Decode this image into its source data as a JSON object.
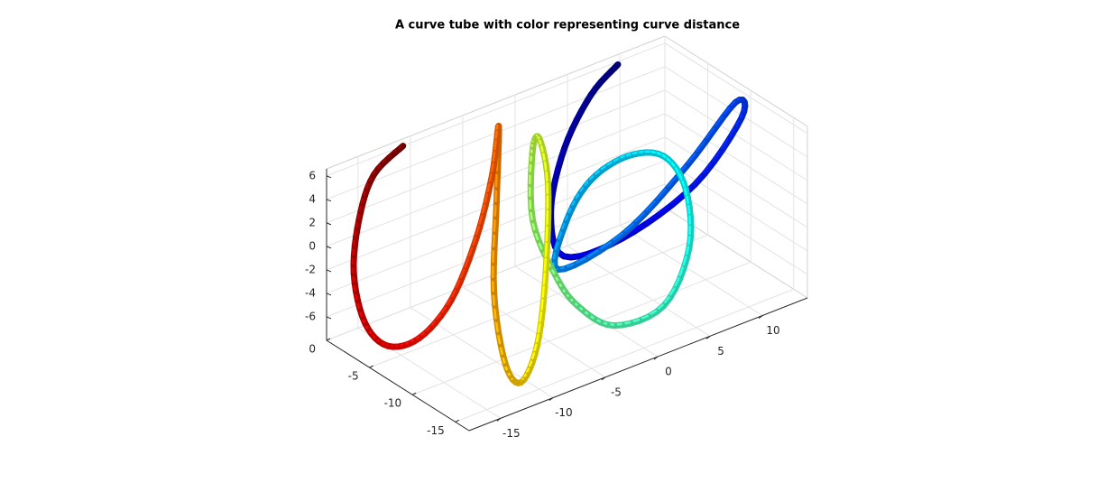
{
  "chart_data": {
    "type": "tube3d",
    "title": "A curve tube with color representing curve distance",
    "colormap": "jet",
    "grid": true,
    "x": [
      9,
      5.1,
      1.3,
      -1.5,
      -2.2,
      2.4,
      7.8,
      13.5,
      13.5,
      7.9,
      1.7,
      -3.8,
      -0.9,
      1.6,
      3.8,
      5.9,
      6.3,
      4.9,
      1.8,
      -1.85,
      -3.8,
      -4.4,
      -3.4,
      -1.55,
      -1.4,
      -3,
      -6.6,
      -8.8,
      -11,
      -10.7,
      -8,
      -5.5,
      -3.2,
      -4.9,
      -7.3,
      -10.2,
      -13.4,
      -16,
      -16.3,
      -15.4,
      -14.9,
      -13.5,
      -10.7
    ],
    "y": [
      -1,
      -2.6,
      -4.15,
      -6,
      -8.35,
      -9.6,
      -11.4,
      -9.9,
      -9.2,
      -10.3,
      -10.5,
      -9.6,
      -7.1,
      -6.9,
      -8.5,
      -10.1,
      -12.2,
      -14.3,
      -15.1,
      -13.8,
      -11.9,
      -10,
      -6.2,
      -3.9,
      -4.5,
      -7.5,
      -11.6,
      -13.3,
      -14.1,
      -11.9,
      -7.3,
      -4.55,
      -2,
      -3.3,
      -4.4,
      -5,
      -5.2,
      -4.7,
      -2.4,
      0,
      0,
      0,
      0
    ],
    "z": [
      6.5,
      6,
      3.5,
      0,
      -2.5,
      -2,
      1.5,
      4.5,
      5.5,
      2.5,
      -1,
      -2.5,
      -0.5,
      2,
      4,
      4,
      2,
      -1.5,
      -5,
      -6,
      -4.5,
      -2.5,
      0,
      4,
      5.5,
      3.5,
      -1,
      -5.5,
      -7.5,
      -7,
      -4,
      1.5,
      6,
      3,
      -1,
      -5,
      -7,
      -7,
      -6,
      -3.2,
      1.2,
      4.5,
      6
    ],
    "xlim": [
      -18,
      14.3
    ],
    "ylim": [
      -16.6,
      0
    ],
    "zlim": [
      -8,
      6.6
    ],
    "xticks": [
      -15,
      -10,
      -5,
      0,
      5,
      10
    ],
    "yticks": [
      -15,
      -10,
      -5,
      0
    ],
    "zticks": [
      -6,
      -4,
      -2,
      0,
      2,
      4,
      6
    ]
  }
}
